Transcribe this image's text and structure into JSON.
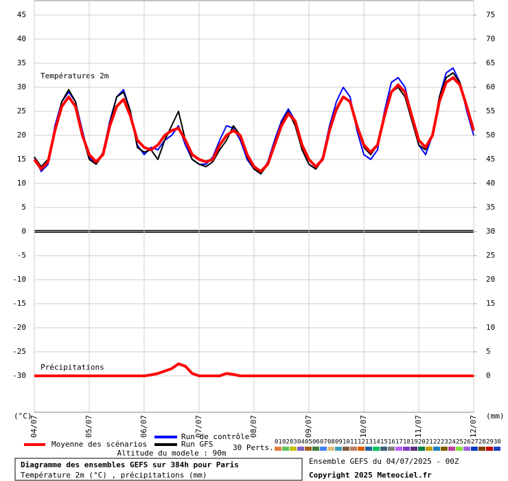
{
  "chart_data": {
    "type": "line",
    "title": "Diagramme des ensembles GEFS sur 384h pour Paris",
    "subtitle": "Température 2m (°C) , précipitations (mm)",
    "run_info": "Ensemble GEFS du 04/07/2025 - 00Z",
    "copyright": "Copyright 2025 Meteociel.fr",
    "altitude": "Altitude du modele : 90m",
    "annotations": [
      "Températures 2m",
      "Précipitations"
    ],
    "ylabel": "(°C)",
    "y2label": "(mm)",
    "perts_label": "30 Perts.",
    "grid": true,
    "x": [
      0,
      3,
      6,
      9,
      12,
      15,
      18,
      21,
      24,
      27,
      30,
      33,
      36,
      39,
      42,
      45,
      48,
      51,
      54,
      57,
      60,
      63,
      66,
      69,
      72,
      75,
      78,
      81,
      84,
      87,
      90,
      93,
      96,
      99,
      102,
      105,
      108,
      111,
      114,
      117,
      120,
      123,
      126,
      129,
      132,
      135,
      138,
      141,
      144,
      147,
      150,
      153,
      156,
      159,
      162,
      165,
      168,
      171,
      174,
      177,
      180,
      183,
      186,
      189,
      192
    ],
    "xlim": [
      0,
      192
    ],
    "xticks": [
      {
        "value": 0,
        "label": "04/07"
      },
      {
        "value": 24,
        "label": "05/07"
      },
      {
        "value": 48,
        "label": "06/07"
      },
      {
        "value": 72,
        "label": "07/07"
      },
      {
        "value": 96,
        "label": "08/07"
      },
      {
        "value": 120,
        "label": "09/07"
      },
      {
        "value": 144,
        "label": "10/07"
      },
      {
        "value": 168,
        "label": "11/07"
      },
      {
        "value": 192,
        "label": "12/07"
      }
    ],
    "ylim": [
      -37.5,
      48
    ],
    "yticks": [
      -30,
      -25,
      -20,
      -15,
      -10,
      -5,
      0,
      5,
      10,
      15,
      20,
      25,
      30,
      35,
      40,
      45
    ],
    "y2lim": [
      -7.5,
      78
    ],
    "y2ticks": [
      0,
      5,
      10,
      15,
      20,
      25,
      30,
      35,
      40,
      45,
      50,
      55,
      60,
      65,
      70,
      75
    ],
    "series": [
      {
        "name": "Run de contrôle",
        "color": "#0000ff",
        "values": [
          15.5,
          12.5,
          14,
          22,
          27,
          29,
          27,
          21,
          15.5,
          14,
          16.5,
          23,
          28,
          29.5,
          25,
          18,
          16,
          17.5,
          17,
          19,
          20,
          22,
          18,
          15,
          14,
          14,
          15.5,
          19,
          22,
          21.5,
          19,
          15,
          13,
          12,
          14.5,
          19,
          23,
          25.5,
          23,
          17,
          14,
          13,
          15.5,
          22,
          27,
          30,
          28,
          21,
          16,
          15,
          17,
          25,
          31,
          32,
          30,
          24,
          18,
          16,
          20,
          28,
          33,
          34,
          31,
          25,
          20
        ]
      },
      {
        "name": "Run GFS",
        "color": "#000000",
        "values": [
          15.5,
          13.5,
          15,
          21,
          27,
          29.5,
          27,
          20,
          15,
          14,
          16,
          22.5,
          28,
          29,
          25,
          17.5,
          16.5,
          17,
          15,
          19,
          22,
          25,
          19,
          15,
          14,
          13.5,
          14.5,
          17,
          19,
          22,
          20,
          15.5,
          13,
          12,
          14,
          18.5,
          22.5,
          25,
          22,
          17,
          14,
          13,
          15,
          21,
          25,
          28,
          27,
          22,
          17.5,
          16,
          18,
          24,
          29,
          30,
          28,
          23,
          18,
          17,
          20,
          28,
          32,
          33,
          31,
          26,
          21
        ]
      },
      {
        "name": "Moyenne des scénarios",
        "color": "#ff0000",
        "values": [
          15,
          13,
          14.5,
          21,
          26,
          28,
          26,
          20,
          16,
          14.5,
          16,
          22,
          26,
          27.5,
          24,
          19,
          17.5,
          17,
          18,
          20,
          21,
          21.5,
          19,
          16,
          15,
          14.5,
          15,
          18,
          20,
          21,
          20,
          16,
          13.5,
          12.5,
          14,
          18,
          22,
          24.5,
          23,
          18,
          15,
          13.5,
          15,
          21,
          25.5,
          28,
          27,
          22,
          18,
          16.5,
          18,
          24,
          29,
          30.5,
          29,
          24,
          19,
          17.5,
          20,
          27,
          31,
          32,
          30.5,
          26,
          21
        ]
      },
      {
        "color": "#ff0000",
        "axis": "y2",
        "values": [
          0,
          0,
          0,
          0,
          0,
          0,
          0,
          0,
          0,
          0,
          0,
          0,
          0,
          0,
          0,
          0,
          0,
          0.2,
          0.5,
          1,
          1.5,
          2.5,
          2,
          0.5,
          0,
          0,
          0,
          0,
          0.5,
          0.3,
          0,
          0,
          0,
          0,
          0,
          0,
          0,
          0,
          0,
          0,
          0,
          0,
          0,
          0,
          0,
          0,
          0,
          0,
          0,
          0,
          0,
          0,
          0,
          0,
          0,
          0,
          0,
          0,
          0,
          0,
          0,
          0,
          0,
          0,
          0
        ]
      }
    ],
    "perturbations": [
      {
        "name": "01",
        "color": "#e08040"
      },
      {
        "name": "02",
        "color": "#60c060"
      },
      {
        "name": "03",
        "color": "#c0c000"
      },
      {
        "name": "04",
        "color": "#8060c0"
      },
      {
        "name": "05",
        "color": "#a06020"
      },
      {
        "name": "06",
        "color": "#408040"
      },
      {
        "name": "07",
        "color": "#4080ff"
      },
      {
        "name": "08",
        "color": "#e0c080"
      },
      {
        "name": "09",
        "color": "#40a0c0"
      },
      {
        "name": "10",
        "color": "#806040"
      },
      {
        "name": "11",
        "color": "#c08060"
      },
      {
        "name": "12",
        "color": "#e06000"
      },
      {
        "name": "13",
        "color": "#2060a0"
      },
      {
        "name": "14",
        "color": "#00c060"
      },
      {
        "name": "15",
        "color": "#406080"
      },
      {
        "name": "16",
        "color": "#808080"
      },
      {
        "name": "17",
        "color": "#c060ff"
      },
      {
        "name": "18",
        "color": "#8040c0"
      },
      {
        "name": "19",
        "color": "#603080"
      },
      {
        "name": "20",
        "color": "#008040"
      },
      {
        "name": "21",
        "color": "#c0a000"
      },
      {
        "name": "22",
        "color": "#2080c0"
      },
      {
        "name": "23",
        "color": "#806000"
      },
      {
        "name": "24",
        "color": "#c040a0"
      },
      {
        "name": "25",
        "color": "#80e040"
      },
      {
        "name": "26",
        "color": "#a060e0"
      },
      {
        "name": "27",
        "color": "#0040c0"
      },
      {
        "name": "28",
        "color": "#804000"
      },
      {
        "name": "29",
        "color": "#c00000"
      },
      {
        "name": "30",
        "color": "#2040c0"
      }
    ]
  }
}
